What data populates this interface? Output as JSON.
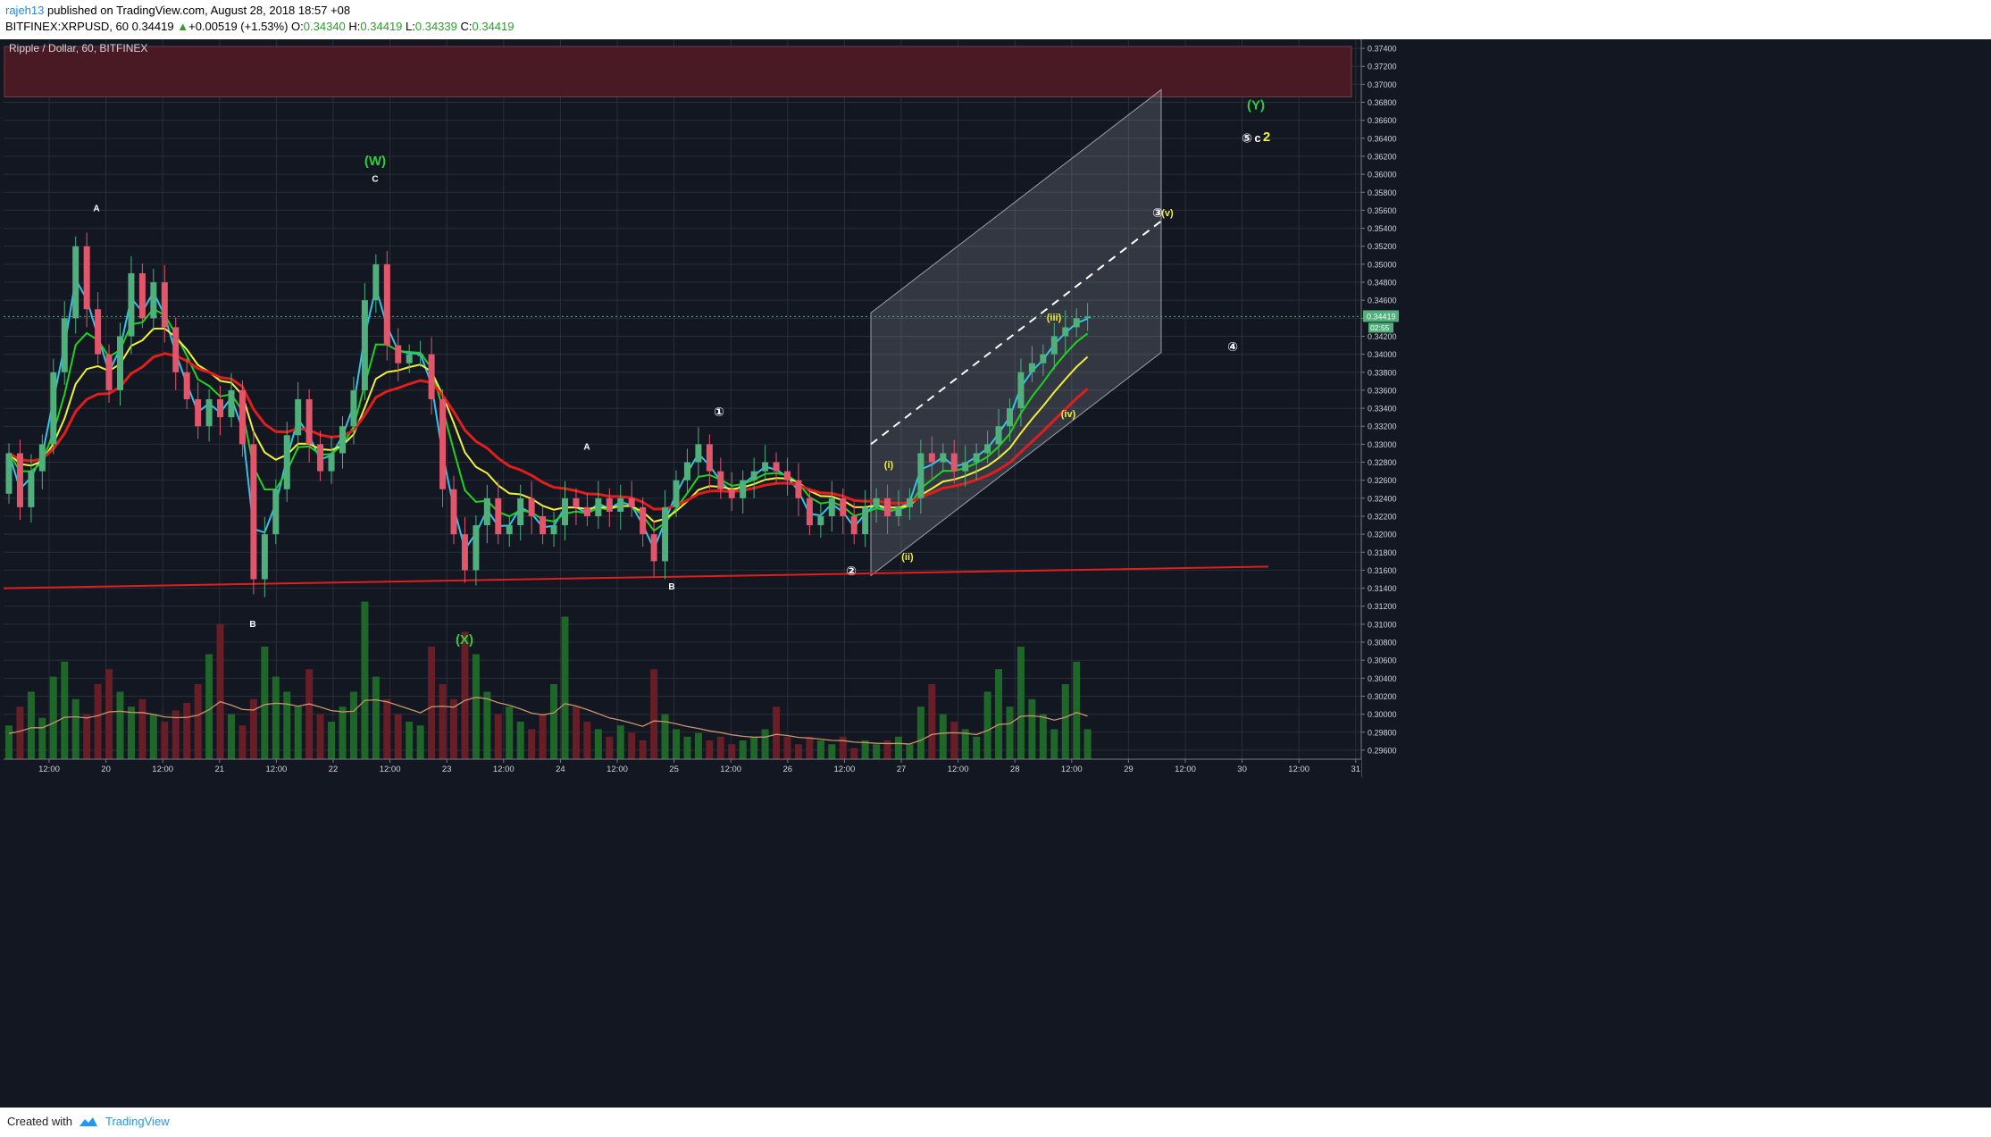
{
  "header": {
    "author": "rajeh13",
    "published": " published on TradingView.com, August 28, 2018 18:57 +08",
    "symbol": "BITFINEX:XRPUSD, 60",
    "last": "0.34419",
    "change": "+0.00519 (+1.53%)",
    "o_label": "O:",
    "o_value": "0.34340",
    "h_label": "H:",
    "h_value": "0.34419",
    "l_label": "L:",
    "l_value": "0.34339",
    "c_label": "C:",
    "c_value": "0.34419"
  },
  "footer": {
    "created_with": "Created with",
    "brand": "TradingView"
  },
  "colors": {
    "background": "#131722",
    "grid": "#2a2e39",
    "up": "#4fb07c",
    "down": "#e0566b",
    "ema_fast": "#33c4ee",
    "ema_green": "#1ed31e",
    "ema_yellow": "#f0f03a",
    "ema_red": "#e01e1e",
    "resistance_zone": "#4a1a24",
    "channel": "#9aa0aa"
  },
  "chart_data": {
    "type": "candlestick",
    "title": "Ripple / Dollar, 60, BITFINEX",
    "ylim": [
      0.295,
      0.375
    ],
    "y_ticks": [
      "0.37400",
      "0.37200",
      "0.37000",
      "0.36800",
      "0.36600",
      "0.36400",
      "0.36200",
      "0.36000",
      "0.35800",
      "0.35600",
      "0.35400",
      "0.35200",
      "0.35000",
      "0.34800",
      "0.34600",
      "0.34400",
      "0.34200",
      "0.34000",
      "0.33800",
      "0.33600",
      "0.33400",
      "0.33200",
      "0.33000",
      "0.32800",
      "0.32600",
      "0.32400",
      "0.32200",
      "0.32000",
      "0.31800",
      "0.31600",
      "0.31400",
      "0.31200",
      "0.31000",
      "0.30800",
      "0.30600",
      "0.30400",
      "0.30200",
      "0.30000",
      "0.29800",
      "0.29600"
    ],
    "x_ticks": [
      "12:00",
      "20",
      "12:00",
      "21",
      "12:00",
      "22",
      "12:00",
      "23",
      "12:00",
      "24",
      "12:00",
      "25",
      "12:00",
      "26",
      "12:00",
      "27",
      "12:00",
      "28",
      "12:00",
      "29",
      "12:00",
      "30",
      "12:00",
      "31"
    ],
    "last_price": "0.34419",
    "countdown": "02:55",
    "resistance_zone": [
      0.3686,
      0.3742
    ],
    "support_line": {
      "from": [
        "19 00:00",
        0.314
      ],
      "to": [
        "30 12:00",
        0.3164
      ]
    },
    "channel_points": [
      0.3154,
      0.3402,
      0.3446,
      0.3694
    ],
    "price_path": [
      [
        0.3245,
        0.329
      ],
      [
        0.329,
        0.323
      ],
      [
        0.323,
        0.327
      ],
      [
        0.327,
        0.33
      ],
      [
        0.33,
        0.338
      ],
      [
        0.338,
        0.344
      ],
      [
        0.344,
        0.352
      ],
      [
        0.352,
        0.345
      ],
      [
        0.345,
        0.34
      ],
      [
        0.34,
        0.336
      ],
      [
        0.336,
        0.342
      ],
      [
        0.342,
        0.349
      ],
      [
        0.349,
        0.344
      ],
      [
        0.344,
        0.348
      ],
      [
        0.348,
        0.343
      ],
      [
        0.343,
        0.338
      ],
      [
        0.338,
        0.335
      ],
      [
        0.335,
        0.332
      ],
      [
        0.332,
        0.335
      ],
      [
        0.335,
        0.333
      ],
      [
        0.333,
        0.336
      ],
      [
        0.336,
        0.33
      ],
      [
        0.33,
        0.315
      ],
      [
        0.315,
        0.32
      ],
      [
        0.32,
        0.325
      ],
      [
        0.325,
        0.331
      ],
      [
        0.331,
        0.335
      ],
      [
        0.335,
        0.33
      ],
      [
        0.33,
        0.327
      ],
      [
        0.327,
        0.329
      ],
      [
        0.329,
        0.332
      ],
      [
        0.332,
        0.336
      ],
      [
        0.336,
        0.346
      ],
      [
        0.346,
        0.35
      ],
      [
        0.35,
        0.341
      ],
      [
        0.341,
        0.339
      ],
      [
        0.339,
        0.34
      ],
      [
        0.34,
        0.34
      ],
      [
        0.34,
        0.335
      ],
      [
        0.335,
        0.325
      ],
      [
        0.325,
        0.32
      ],
      [
        0.32,
        0.316
      ],
      [
        0.316,
        0.321
      ],
      [
        0.321,
        0.324
      ],
      [
        0.324,
        0.32
      ],
      [
        0.32,
        0.321
      ],
      [
        0.321,
        0.324
      ],
      [
        0.324,
        0.322
      ],
      [
        0.322,
        0.32
      ],
      [
        0.32,
        0.321
      ],
      [
        0.321,
        0.324
      ],
      [
        0.324,
        0.323
      ],
      [
        0.323,
        0.322
      ],
      [
        0.322,
        0.324
      ],
      [
        0.324,
        0.3225
      ],
      [
        0.3225,
        0.324
      ],
      [
        0.324,
        0.323
      ],
      [
        0.323,
        0.32
      ],
      [
        0.32,
        0.317
      ],
      [
        0.317,
        0.323
      ],
      [
        0.323,
        0.326
      ],
      [
        0.326,
        0.328
      ],
      [
        0.328,
        0.33
      ],
      [
        0.33,
        0.327
      ],
      [
        0.327,
        0.325
      ],
      [
        0.325,
        0.324
      ],
      [
        0.324,
        0.326
      ],
      [
        0.326,
        0.327
      ],
      [
        0.327,
        0.328
      ],
      [
        0.328,
        0.327
      ],
      [
        0.327,
        0.326
      ],
      [
        0.326,
        0.324
      ],
      [
        0.324,
        0.321
      ],
      [
        0.321,
        0.322
      ],
      [
        0.322,
        0.324
      ],
      [
        0.324,
        0.322
      ],
      [
        0.322,
        0.32
      ],
      [
        0.32,
        0.323
      ],
      [
        0.323,
        0.324
      ],
      [
        0.324,
        0.322
      ],
      [
        0.322,
        0.323
      ],
      [
        0.323,
        0.324
      ],
      [
        0.324,
        0.329
      ],
      [
        0.329,
        0.328
      ],
      [
        0.328,
        0.329
      ],
      [
        0.329,
        0.327
      ],
      [
        0.327,
        0.328
      ],
      [
        0.328,
        0.329
      ],
      [
        0.329,
        0.33
      ],
      [
        0.33,
        0.332
      ],
      [
        0.332,
        0.334
      ],
      [
        0.334,
        0.338
      ],
      [
        0.338,
        0.339
      ],
      [
        0.339,
        0.34
      ],
      [
        0.34,
        0.342
      ],
      [
        0.342,
        0.343
      ],
      [
        0.343,
        0.344
      ],
      [
        0.344,
        0.3442
      ]
    ],
    "volume_path": [
      9,
      14,
      18,
      11,
      22,
      26,
      16,
      12,
      20,
      24,
      18,
      14,
      16,
      12,
      10,
      13,
      15,
      20,
      28,
      36,
      12,
      9,
      16,
      30,
      22,
      18,
      14,
      24,
      12,
      10,
      14,
      18,
      42,
      22,
      16,
      12,
      10,
      9,
      30,
      20,
      16,
      34,
      28,
      18,
      12,
      14,
      10,
      8,
      12,
      20,
      38,
      14,
      10,
      8,
      6,
      9,
      7,
      5,
      24,
      12,
      8,
      6,
      7,
      5,
      6,
      4,
      5,
      6,
      8,
      14,
      6,
      4,
      6,
      5,
      4,
      6,
      3,
      5,
      4,
      5,
      6,
      4,
      14,
      20,
      12,
      10,
      8,
      6,
      18,
      24,
      14,
      30,
      16,
      12,
      8,
      20,
      26,
      8
    ],
    "series": [
      {
        "name": "",
        "color": "#33c4ee",
        "lag": 2
      },
      {
        "name": "",
        "color": "#1ed31e",
        "lag": 5
      },
      {
        "name": "",
        "color": "#f0f03a",
        "lag": 9
      },
      {
        "name": "",
        "color": "#e01e1e",
        "lag": 16
      }
    ],
    "annotations": {
      "W": "(W)",
      "X": "(X)",
      "Y": "(Y)",
      "A1": "A",
      "B1": "B",
      "C1": "C",
      "A2": "A",
      "B2": "B",
      "c1": "①",
      "c2": "②",
      "c3": "③",
      "c4": "④",
      "c5": "⑤",
      "yi": "(i)",
      "yii": "(ii)",
      "yiii": "(iii)",
      "yiv": "(iv)",
      "yv": "(v)",
      "c_lower": "c",
      "two": "2"
    }
  }
}
